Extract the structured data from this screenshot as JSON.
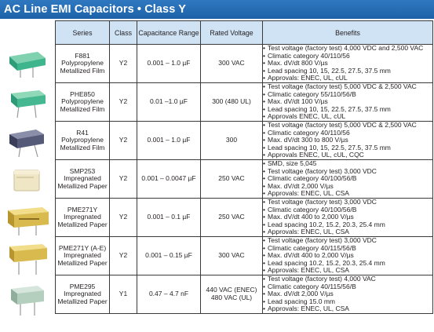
{
  "title": "AC Line EMI Capacitors • Class Y",
  "headers": {
    "series": "Series",
    "class": "Class",
    "capacitance": "Capacitance Range",
    "voltage": "Rated Voltage",
    "benefits": "Benefits"
  },
  "rows": [
    {
      "series": [
        "F881",
        "Polypropylene",
        "Metallized Film"
      ],
      "class": "Y2",
      "capacitance": "0.001 – 1.0 µF",
      "voltage": [
        "300 VAC"
      ],
      "benefits": [
        "Test voltage (factory test) 4,000 VDC and 2,500 VAC",
        "Climatic category 40/110/56",
        "Max. dV/dt 800 V/µs",
        "Lead spacing 10, 15, 22.5, 27.5, 37.5 mm",
        "Approvals: ENEC, UL, cUL"
      ]
    },
    {
      "series": [
        "PHE850",
        "Polypropylene",
        "Metallized Film"
      ],
      "class": "Y2",
      "capacitance": "0.01 –1.0 µF",
      "voltage": [
        "300 (480 UL)"
      ],
      "benefits": [
        "Test voltage (factory test) 5,000 VDC & 2,500 VAC",
        "Climatic category 55/110/56/B",
        "Max. dV/dt 100 V/µs",
        "Lead spacing 10, 15, 22.5, 27.5, 37.5 mm",
        "Approvals ENEC, UL, cUL"
      ]
    },
    {
      "series": [
        "R41",
        "Polypropylene",
        "Metallized Film"
      ],
      "class": "Y2",
      "capacitance": "0.001 – 1.0 µF",
      "voltage": [
        "300"
      ],
      "benefits": [
        "Test voltage (factory test) 5,000 VDC & 2,500 VAC",
        "Climatic category 40/110/56",
        "Max. dV/dt 300 to 800 V/µs",
        "Lead spacing 10, 15, 22.5, 27.5, 37.5 mm",
        "Approvals ENEC, UL, cUL, CQC"
      ]
    },
    {
      "series": [
        "SMP253",
        "Impregnated",
        "Metallized Paper"
      ],
      "class": "Y2",
      "capacitance": "0.001 – 0.0047 µF",
      "voltage": [
        "250 VAC"
      ],
      "benefits": [
        "SMD, size 5,045",
        "Test voltage (factory test) 3,000 VDC",
        "Climatic category 40/100/56/B",
        "Max. dV/dt 2,000 V/µs",
        "Approvals: ENEC, UL, CSA"
      ]
    },
    {
      "series": [
        "PME271Y",
        "Impregnated",
        "Metallized Paper"
      ],
      "class": "Y2",
      "capacitance": "0.001 – 0.1 µF",
      "voltage": [
        "250 VAC"
      ],
      "benefits": [
        "Test voltage (factory test) 3,000 VDC",
        "Climatic category 40/100/56/B",
        "Max. dV/dt 400 to 2,000 V/µs",
        "Lead spacing 10.2, 15.2, 20.3, 25.4 mm",
        "Approvals: ENEC, UL, CSA"
      ]
    },
    {
      "series": [
        "PME271Y (A-E)",
        "Impregnated",
        "Metallized Paper"
      ],
      "class": "Y2",
      "capacitance": "0.001 – 0.15 µF",
      "voltage": [
        "300 VAC"
      ],
      "benefits": [
        "Test voltage (factory test) 3,000 VDC",
        "Climatic category 40/115/56/B",
        "Max. dV/dt 400 to 2,000 V/µs",
        "Lead spacing 10.2, 15.2, 20.3, 25.4 mm",
        "Approvals: ENEC, UL, CSA"
      ]
    },
    {
      "series": [
        "PME295",
        "Impregnated",
        "Metallized Paper"
      ],
      "class": "Y1",
      "capacitance": "0.47 – 4.7 nF",
      "voltage": [
        "440 VAC (ENEC)",
        "480 VAC (UL)"
      ],
      "benefits": [
        "Test voltage (factory test) 4,000 VAC",
        "Climatic category 40/115/56/B",
        "Max. dV/dt 2,000 V/µs",
        "Lead spacing 15.0 mm",
        "Approvals: ENEC, UL, CSA"
      ]
    }
  ],
  "colors": {
    "title_bar": "#2472b8",
    "header_fill": "#cfe3f5"
  }
}
